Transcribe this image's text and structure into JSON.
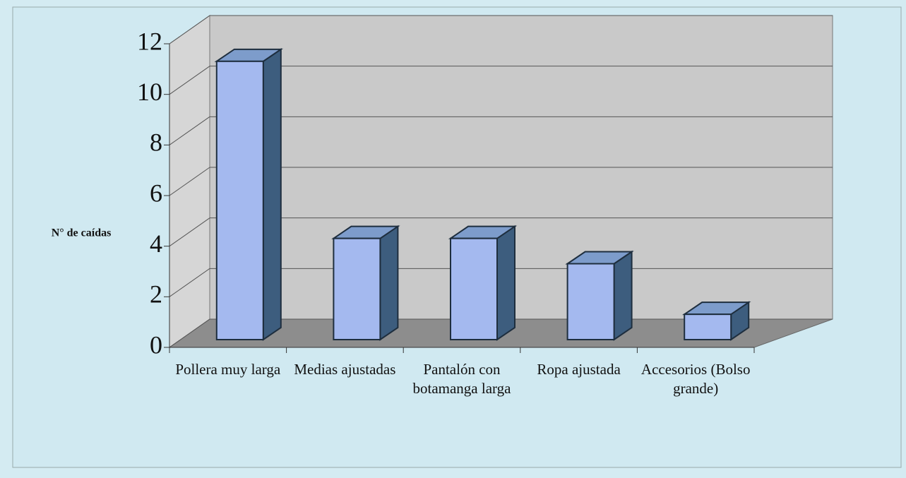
{
  "chart_data": {
    "type": "bar3d",
    "y_label": "N° de caídas",
    "categories": [
      "Pollera muy larga",
      "Medias ajustadas",
      "Pantalón con botamanga larga",
      "Ropa ajustada",
      "Accesorios (Bolso grande)"
    ],
    "values": [
      11,
      4,
      4,
      3,
      1
    ],
    "color": "#a4b9ef",
    "ylim": [
      0,
      12
    ],
    "yticks": [
      0,
      2,
      4,
      6,
      8,
      10,
      12
    ],
    "grid": true
  }
}
